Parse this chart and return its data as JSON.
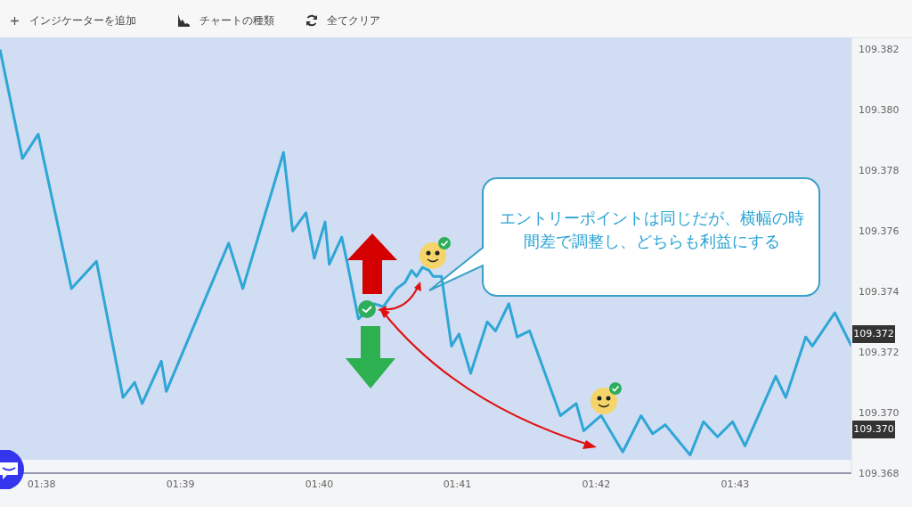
{
  "chart_data": {
    "type": "line",
    "x": [
      1.6283,
      1.631,
      1.6329,
      1.6369,
      1.6399,
      1.6431,
      1.6445,
      1.6454,
      1.6477,
      1.6483,
      1.6558,
      1.6575,
      1.6624,
      1.6635,
      1.6651,
      1.6661,
      1.6674,
      1.6679,
      1.6694,
      1.6701,
      1.6714,
      1.6733,
      1.6744,
      1.676,
      1.677,
      1.6778,
      1.6784,
      1.6791,
      1.6799,
      1.6804,
      1.6814,
      1.6826,
      1.6835,
      1.6849,
      1.6869,
      1.6879,
      1.6895,
      1.6905,
      1.692,
      1.6957,
      1.6976,
      1.6985,
      1.7006,
      1.7032,
      1.7054,
      1.7068,
      1.7083,
      1.7113,
      1.7129,
      1.7146,
      1.7164,
      1.7179,
      1.7216,
      1.7228,
      1.7252,
      1.726,
      1.7287,
      1.7307
    ],
    "series": [
      {
        "color": "#2ea6d6",
        "values": [
          109.382,
          109.3784,
          109.3792,
          109.3741,
          109.375,
          109.3705,
          109.371,
          109.3703,
          109.3717,
          109.3707,
          109.3756,
          109.3741,
          109.3786,
          109.376,
          109.3766,
          109.3751,
          109.3763,
          109.3749,
          109.3758,
          109.3749,
          109.3731,
          109.3736,
          109.3735,
          109.3741,
          109.3743,
          109.3747,
          109.3745,
          109.3748,
          109.3747,
          109.3745,
          109.3745,
          109.3722,
          109.3726,
          109.3713,
          109.373,
          109.3727,
          109.3736,
          109.3725,
          109.3727,
          109.3699,
          109.3703,
          109.3694,
          109.3699,
          109.3687,
          109.3699,
          109.3693,
          109.3696,
          109.3686,
          109.3697,
          109.3692,
          109.3697,
          109.3689,
          109.3712,
          109.3705,
          109.3725,
          109.3722,
          109.3733,
          109.3722
        ]
      }
    ],
    "xlim": [
      1.6283,
      1.7307
    ],
    "xticks": [
      {
        "value": 1.6333,
        "label": "01:38"
      },
      {
        "value": 1.65,
        "label": "01:39"
      },
      {
        "value": 1.6667,
        "label": "01:40"
      },
      {
        "value": 1.6833,
        "label": "01:41"
      },
      {
        "value": 1.7,
        "label": "01:42"
      },
      {
        "value": 1.7167,
        "label": "01:43"
      }
    ],
    "ylim": [
      109.368,
      109.3824
    ],
    "yticks": [
      109.368,
      {
        "value": 109.37,
        "label": "109.370"
      },
      109.372,
      109.374,
      109.376,
      109.378,
      {
        "value": 109.38,
        "label": "109.380"
      },
      109.382
    ],
    "grid": false,
    "annotations": [
      "インジケーターを追加",
      "チャートの種類",
      "全てクリア",
      "エントリーポイントは同じだが、横幅の時間差で調整し、どちらも利益にする",
      "109.372",
      "109.370"
    ]
  }
}
